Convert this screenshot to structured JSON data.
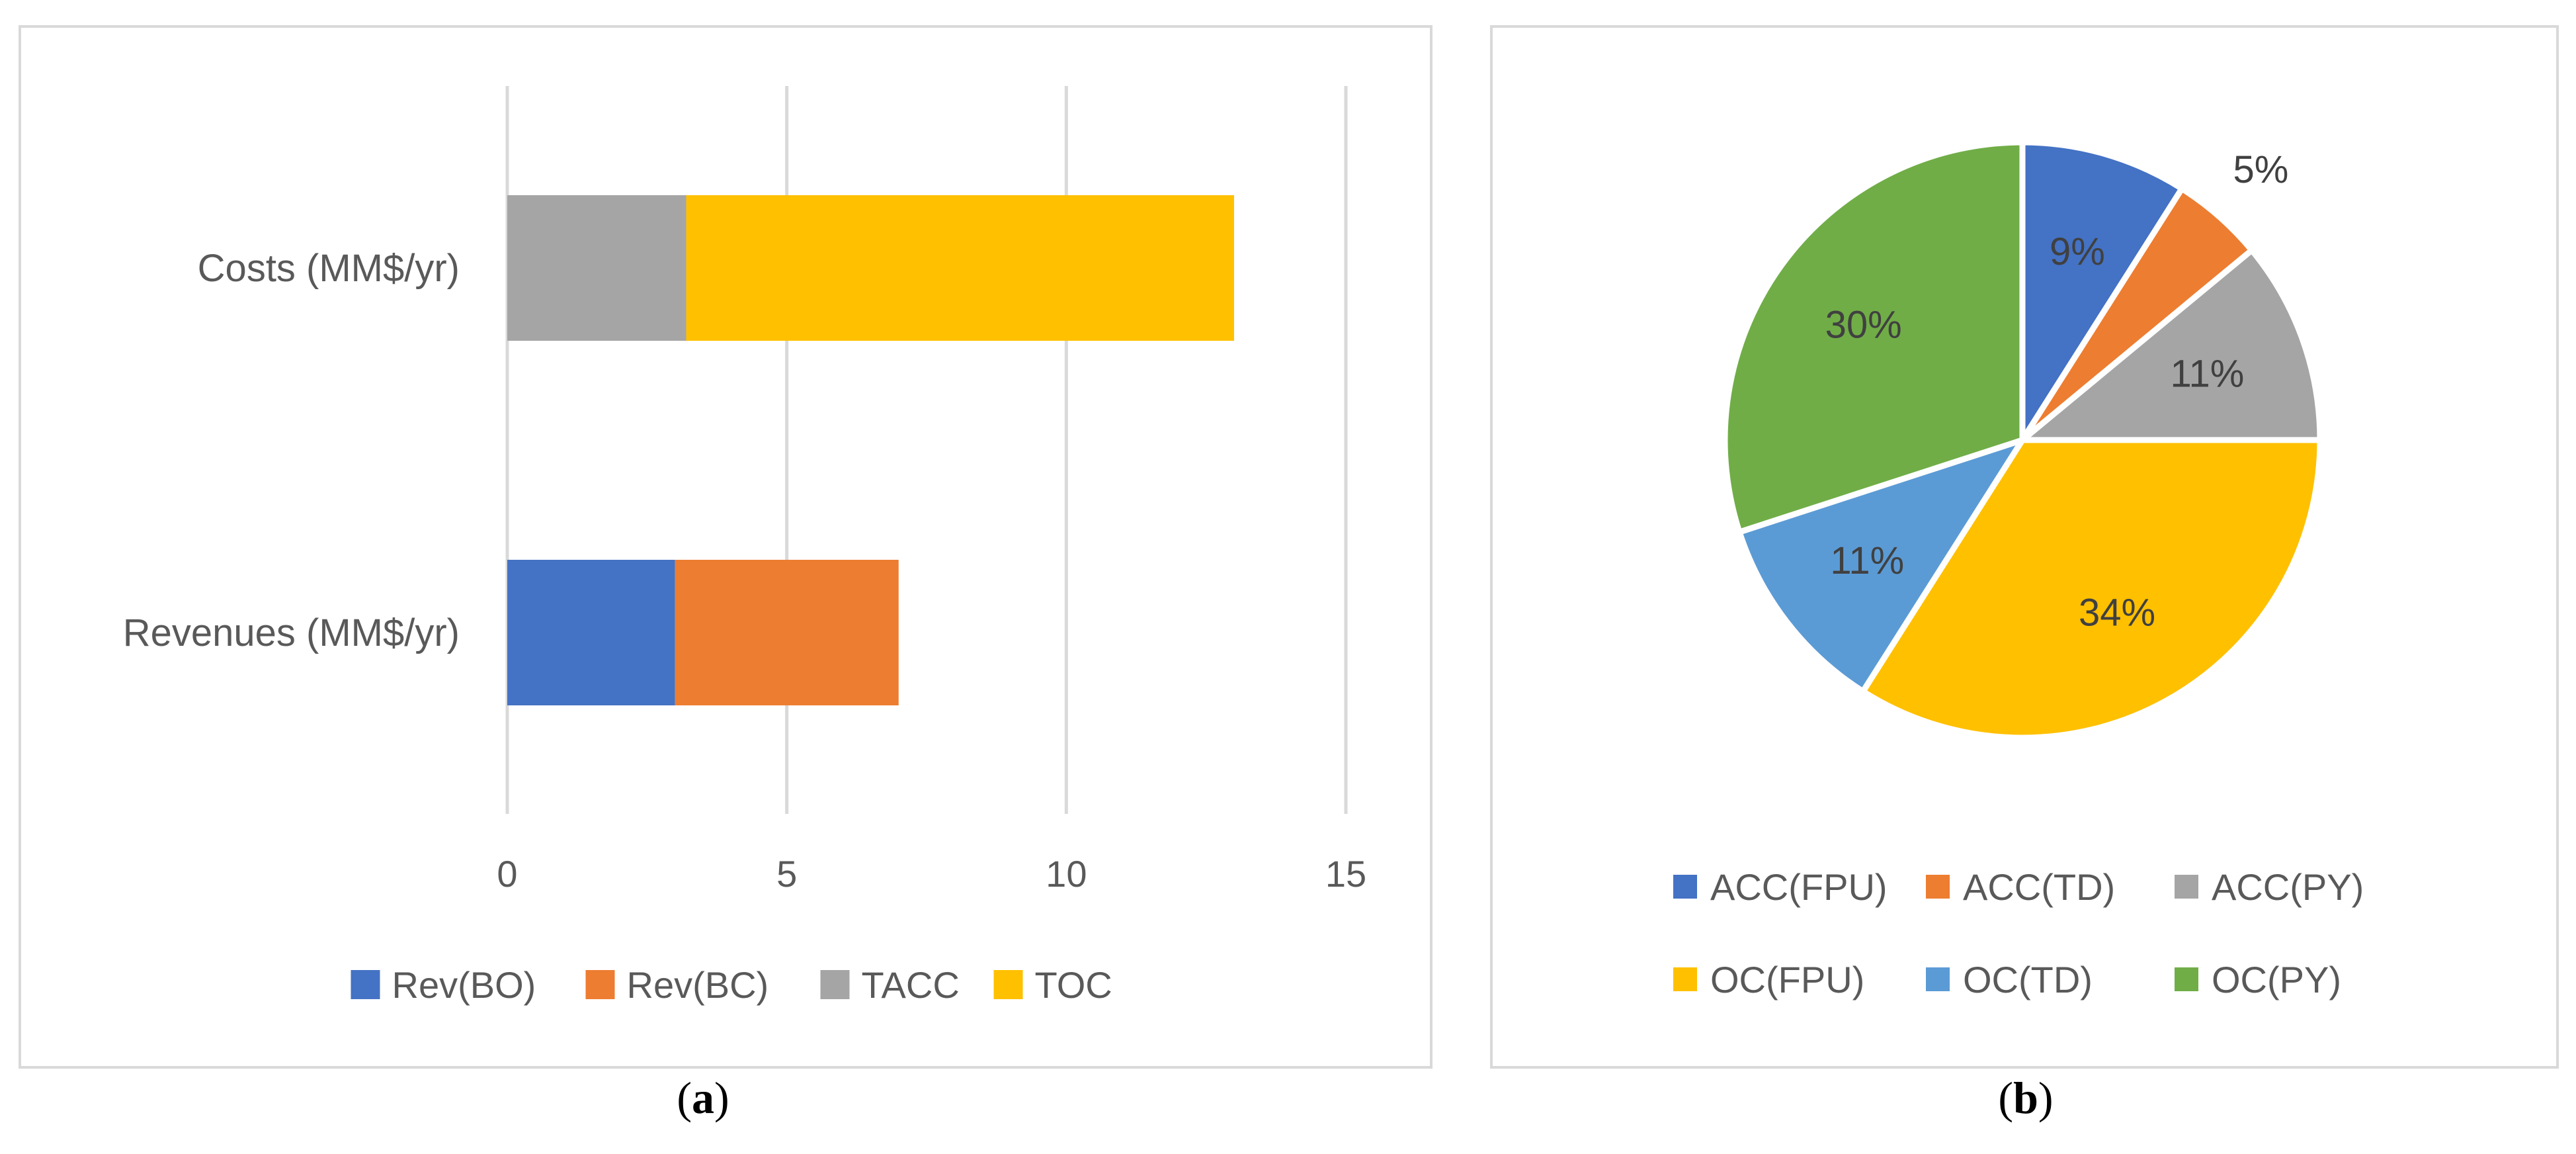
{
  "chart_data": [
    {
      "type": "bar",
      "orientation": "horizontal",
      "stacked": true,
      "categories": [
        "Revenues (MM$/yr)",
        "Costs (MM$/yr)"
      ],
      "series": [
        {
          "name": "Rev(BO)",
          "color": "#4472C4",
          "values": [
            3.0,
            0
          ]
        },
        {
          "name": "Rev(BC)",
          "color": "#ED7D31",
          "values": [
            4.0,
            0
          ]
        },
        {
          "name": "TACC",
          "color": "#A5A5A5",
          "values": [
            0,
            3.2
          ]
        },
        {
          "name": "TOC",
          "color": "#FFC000",
          "values": [
            0,
            9.8
          ]
        }
      ],
      "xlim": [
        0,
        15
      ],
      "xticks": [
        "0",
        "5",
        "10",
        "15"
      ],
      "grid": true,
      "legend": "bottom",
      "caption_letter": "a"
    },
    {
      "type": "pie",
      "slices": [
        {
          "name": "ACC(FPU)",
          "value": 9,
          "label": "9%",
          "color": "#4472C4"
        },
        {
          "name": "ACC(TD)",
          "value": 5,
          "label": "5%",
          "color": "#ED7D31"
        },
        {
          "name": "ACC(PY)",
          "value": 11,
          "label": "11%",
          "color": "#A5A5A5"
        },
        {
          "name": "OC(FPU)",
          "value": 34,
          "label": "34%",
          "color": "#FFC000"
        },
        {
          "name": "OC(TD)",
          "value": 11,
          "label": "11%",
          "color": "#5B9BD5"
        },
        {
          "name": "OC(PY)",
          "value": 30,
          "label": "30%",
          "color": "#70AD47"
        }
      ],
      "legend": "bottom",
      "caption_letter": "b"
    }
  ]
}
